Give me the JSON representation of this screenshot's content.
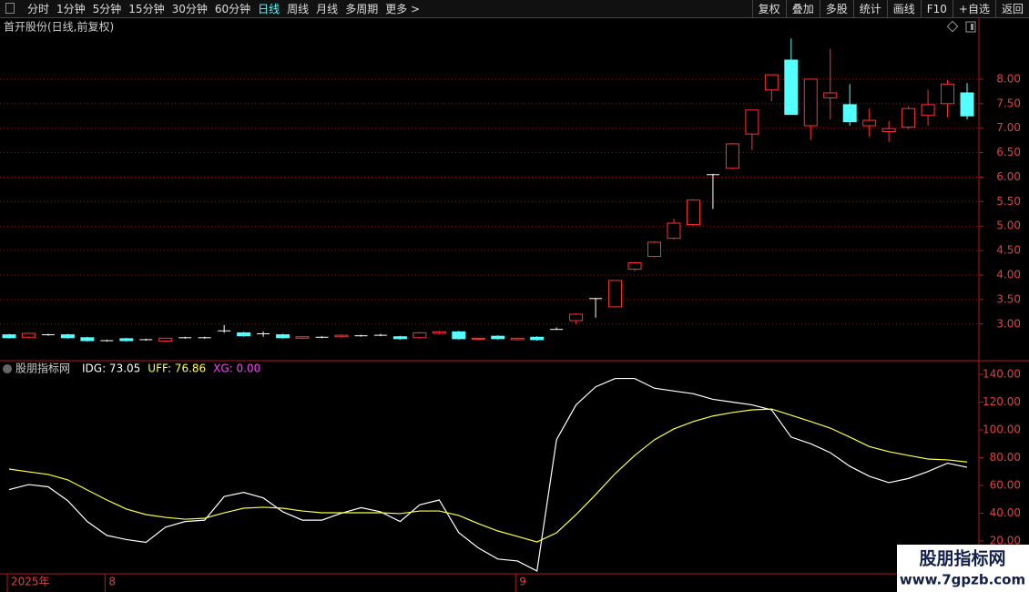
{
  "toolbar": {
    "left": [
      "分时",
      "1分钟",
      "5分钟",
      "15分钟",
      "30分钟",
      "60分钟",
      "日线",
      "周线",
      "月线",
      "多周期",
      "更多 >"
    ],
    "right": [
      "复权",
      "叠加",
      "多股",
      "统计",
      "画线",
      "F10",
      "+自选",
      "返回"
    ]
  },
  "watermark": {
    "title": "股朋指标网",
    "url": "www.7gpzb.com"
  },
  "chart_data": [
    {
      "type": "candlestick",
      "title": "首开股份(日线,前复权)",
      "categories": [
        "2025年",
        null,
        null,
        null,
        null,
        "8",
        null,
        null,
        null,
        null,
        null,
        null,
        null,
        null,
        null,
        null,
        null,
        null,
        null,
        null,
        null,
        null,
        null,
        null,
        null,
        null,
        "9",
        null,
        null,
        null,
        null,
        null,
        null,
        null,
        null,
        null,
        null,
        null,
        null,
        null,
        null,
        null,
        null,
        null,
        null,
        null,
        null,
        null,
        null,
        null
      ],
      "open": [
        2.78,
        2.73,
        2.78,
        2.78,
        2.72,
        2.66,
        2.7,
        2.68,
        2.65,
        2.72,
        2.72,
        2.86,
        2.82,
        2.8,
        2.78,
        2.71,
        2.73,
        2.74,
        2.76,
        2.77,
        2.74,
        2.72,
        2.81,
        2.84,
        2.69,
        2.75,
        2.68,
        2.73,
        2.89,
        3.07,
        3.52,
        3.35,
        4.12,
        4.38,
        4.75,
        5.03,
        6.05,
        6.18,
        6.88,
        7.78,
        8.39,
        7.05,
        7.62,
        7.48,
        7.05,
        6.93,
        7.02,
        7.26,
        7.5,
        7.72
      ],
      "high": [
        2.8,
        2.82,
        2.8,
        2.8,
        2.74,
        2.68,
        2.72,
        2.7,
        2.72,
        2.74,
        2.74,
        2.98,
        2.84,
        2.85,
        2.8,
        2.75,
        2.75,
        2.79,
        2.78,
        2.8,
        2.76,
        2.84,
        2.86,
        2.86,
        2.72,
        2.77,
        2.72,
        2.75,
        2.93,
        3.22,
        3.53,
        3.89,
        4.27,
        4.69,
        5.15,
        5.55,
        6.07,
        6.7,
        7.37,
        8.09,
        8.83,
        8.0,
        8.62,
        7.9,
        7.4,
        7.15,
        7.45,
        7.78,
        7.98,
        7.92
      ],
      "low": [
        2.7,
        2.72,
        2.76,
        2.7,
        2.64,
        2.64,
        2.64,
        2.66,
        2.63,
        2.7,
        2.7,
        2.82,
        2.74,
        2.74,
        2.7,
        2.69,
        2.71,
        2.72,
        2.74,
        2.75,
        2.68,
        2.7,
        2.79,
        2.68,
        2.66,
        2.68,
        2.66,
        2.66,
        2.88,
        3.0,
        3.13,
        3.35,
        4.08,
        4.36,
        4.73,
        5.01,
        5.35,
        6.16,
        6.55,
        7.55,
        7.28,
        6.76,
        7.18,
        7.05,
        6.82,
        6.72,
        6.98,
        7.05,
        7.22,
        7.18
      ],
      "close": [
        2.72,
        2.81,
        2.78,
        2.72,
        2.66,
        2.66,
        2.66,
        2.68,
        2.71,
        2.72,
        2.72,
        2.86,
        2.76,
        2.8,
        2.72,
        2.74,
        2.73,
        2.77,
        2.76,
        2.77,
        2.7,
        2.82,
        2.84,
        2.7,
        2.71,
        2.7,
        2.71,
        2.68,
        2.89,
        3.2,
        3.52,
        3.89,
        4.25,
        4.67,
        5.06,
        5.53,
        6.05,
        6.68,
        7.37,
        8.09,
        7.28,
        8.0,
        7.72,
        7.13,
        7.16,
        6.99,
        7.4,
        7.48,
        7.9,
        7.25
      ],
      "colors": {
        "up": "#ff3232",
        "down": "#54ffff",
        "flat": "#ffffff"
      },
      "ylim": [
        2.27,
        8.91
      ],
      "yticks": [
        {
          "value": 3,
          "label": "3.00"
        },
        {
          "value": 3.5,
          "label": "3.50"
        },
        {
          "value": 4,
          "label": "4.00"
        },
        {
          "value": 4.5,
          "label": "4.50"
        },
        {
          "value": 5,
          "label": "5.00"
        },
        {
          "value": 5.5,
          "label": "5.50"
        },
        {
          "value": 6,
          "label": "6.00"
        },
        {
          "value": 6.5,
          "label": "6.50"
        },
        {
          "value": 7,
          "label": "7.00"
        },
        {
          "value": 7.5,
          "label": "7.50"
        },
        {
          "value": 8,
          "label": "8.00"
        }
      ],
      "grid": true
    },
    {
      "type": "line",
      "title": "股朋指标网",
      "legend": [
        {
          "text": "IDG: 73.05",
          "color": "#ffffff"
        },
        {
          "text": "UFF: 76.86",
          "color": "#ffff40"
        },
        {
          "text": "XG: 0.00",
          "color": "#ff40ff"
        }
      ],
      "series": [
        {
          "name": "IDG",
          "color": "#ffffff",
          "values": [
            57,
            60.6,
            59,
            49,
            34,
            24,
            21,
            19,
            30,
            34,
            35,
            52,
            55,
            51,
            41,
            35,
            35,
            40,
            44,
            41,
            34,
            46,
            49.5,
            26,
            15,
            7,
            5.6,
            -1.6,
            93,
            118,
            131,
            137,
            137,
            130,
            128,
            126,
            122,
            120,
            118,
            114.4,
            94.8,
            90,
            83.6,
            73.8,
            66.6,
            62,
            65,
            70,
            76,
            73.05
          ]
        },
        {
          "name": "UFF",
          "color": "#ffff40",
          "values": [
            71.8,
            69.8,
            67.9,
            64,
            56.7,
            49.5,
            43,
            39,
            37,
            35.7,
            36.4,
            40.3,
            43.6,
            44.3,
            43.6,
            41.6,
            40.3,
            40.3,
            40.3,
            40.3,
            39.7,
            41.6,
            41.6,
            38.4,
            32.5,
            27.2,
            23.3,
            19.3,
            25.9,
            39,
            53.4,
            68.5,
            81.6,
            92.8,
            100.7,
            106,
            110,
            112.5,
            114.4,
            115,
            110.5,
            106,
            101.3,
            94.8,
            88,
            84.3,
            81.6,
            79,
            78.4,
            76.86
          ]
        }
      ],
      "ylim": [
        -2.3,
        147.2
      ],
      "yticks": [
        {
          "value": 20,
          "label": "20.00"
        },
        {
          "value": 40,
          "label": "40.00"
        },
        {
          "value": 60,
          "label": "60.00"
        },
        {
          "value": 80,
          "label": "80.00"
        },
        {
          "value": 100,
          "label": "100.00"
        },
        {
          "value": 120,
          "label": "120.00"
        },
        {
          "value": 140,
          "label": "140.00"
        }
      ],
      "grid": false
    }
  ]
}
